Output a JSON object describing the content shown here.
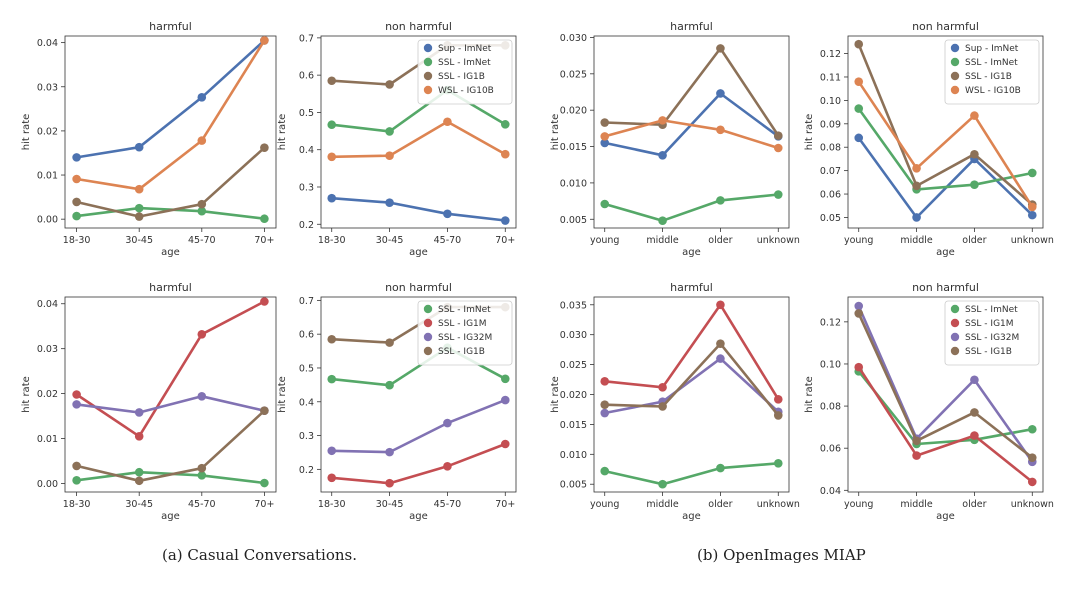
{
  "colors": {
    "Sup - ImNet": "#4c72b0",
    "SSL - ImNet": "#55a868",
    "SSL - IG1B": "#8c7158",
    "WSL - IG10B": "#dd8452",
    "SSL - IG1M": "#c44e52",
    "SSL - IG32M": "#8172b3"
  },
  "captions": {
    "a": "(a) Casual Conversations.",
    "b": "(b) OpenImages MIAP"
  },
  "chart_data": [
    {
      "type": "line",
      "title": "harmful",
      "xlabel": "age",
      "ylabel": "hit rate",
      "categories": [
        "18-30",
        "30-45",
        "45-70",
        "70+"
      ],
      "ylim": [
        -0.002,
        0.0415
      ],
      "yticks": [
        0.0,
        0.01,
        0.02,
        0.03,
        0.04
      ],
      "ytick_labels": [
        "0.00",
        "0.01",
        "0.02",
        "0.03",
        "0.04"
      ],
      "legend": null,
      "series": [
        {
          "name": "Sup - ImNet",
          "values": [
            0.014,
            0.0163,
            0.0276,
            0.0405
          ]
        },
        {
          "name": "SSL - ImNet",
          "values": [
            0.0007,
            0.0025,
            0.0018,
            0.0001
          ]
        },
        {
          "name": "SSL - IG1B",
          "values": [
            0.0039,
            0.0006,
            0.0034,
            0.0162
          ]
        },
        {
          "name": "WSL - IG10B",
          "values": [
            0.0091,
            0.0068,
            0.0178,
            0.0405
          ]
        }
      ]
    },
    {
      "type": "line",
      "title": "non harmful",
      "xlabel": "age",
      "ylabel": "hit rate",
      "categories": [
        "18-30",
        "30-45",
        "45-70",
        "70+"
      ],
      "ylim": [
        0.19,
        0.705
      ],
      "yticks": [
        0.2,
        0.3,
        0.4,
        0.5,
        0.6,
        0.7
      ],
      "ytick_labels": [
        "0.2",
        "0.3",
        "0.4",
        "0.5",
        "0.6",
        "0.7"
      ],
      "legend": "top-right",
      "series": [
        {
          "name": "Sup - ImNet",
          "values": [
            0.27,
            0.258,
            0.228,
            0.21
          ]
        },
        {
          "name": "SSL - ImNet",
          "values": [
            0.467,
            0.449,
            0.56,
            0.468
          ]
        },
        {
          "name": "SSL - IG1B",
          "values": [
            0.585,
            0.575,
            0.68,
            0.68
          ]
        },
        {
          "name": "WSL - IG10B",
          "values": [
            0.381,
            0.384,
            0.475,
            0.388
          ]
        }
      ]
    },
    {
      "type": "line",
      "title": "harmful",
      "xlabel": "age",
      "ylabel": "hit rate",
      "categories": [
        "young",
        "middle",
        "older",
        "unknown"
      ],
      "ylim": [
        0.0038,
        0.0302
      ],
      "yticks": [
        0.005,
        0.01,
        0.015,
        0.02,
        0.025,
        0.03
      ],
      "ytick_labels": [
        "0.005",
        "0.010",
        "0.015",
        "0.020",
        "0.025",
        "0.030"
      ],
      "legend": null,
      "series": [
        {
          "name": "Sup - ImNet",
          "values": [
            0.0155,
            0.0138,
            0.0223,
            0.0164
          ]
        },
        {
          "name": "SSL - ImNet",
          "values": [
            0.0071,
            0.0048,
            0.0076,
            0.0084
          ]
        },
        {
          "name": "SSL - IG1B",
          "values": [
            0.0183,
            0.018,
            0.0285,
            0.0165
          ]
        },
        {
          "name": "WSL - IG10B",
          "values": [
            0.0164,
            0.0186,
            0.0173,
            0.0148
          ]
        }
      ]
    },
    {
      "type": "line",
      "title": "non harmful",
      "xlabel": "age",
      "ylabel": "hit rate",
      "categories": [
        "young",
        "middle",
        "older",
        "unknown"
      ],
      "ylim": [
        0.0455,
        0.1275
      ],
      "yticks": [
        0.05,
        0.06,
        0.07,
        0.08,
        0.09,
        0.1,
        0.11,
        0.12
      ],
      "ytick_labels": [
        "0.05",
        "0.06",
        "0.07",
        "0.08",
        "0.09",
        "0.10",
        "0.11",
        "0.12"
      ],
      "legend": "top-right",
      "series": [
        {
          "name": "Sup - ImNet",
          "values": [
            0.084,
            0.05,
            0.075,
            0.051
          ]
        },
        {
          "name": "SSL - ImNet",
          "values": [
            0.0965,
            0.062,
            0.064,
            0.069
          ]
        },
        {
          "name": "SSL - IG1B",
          "values": [
            0.124,
            0.0635,
            0.077,
            0.0555
          ]
        },
        {
          "name": "WSL - IG10B",
          "values": [
            0.108,
            0.071,
            0.0935,
            0.0545
          ]
        }
      ]
    },
    {
      "type": "line",
      "title": "harmful",
      "xlabel": "age",
      "ylabel": "hit rate",
      "categories": [
        "18-30",
        "30-45",
        "45-70",
        "70+"
      ],
      "ylim": [
        -0.0019,
        0.0415
      ],
      "yticks": [
        0.0,
        0.01,
        0.02,
        0.03,
        0.04
      ],
      "ytick_labels": [
        "0.00",
        "0.01",
        "0.02",
        "0.03",
        "0.04"
      ],
      "legend": null,
      "series": [
        {
          "name": "SSL - ImNet",
          "values": [
            0.0007,
            0.0025,
            0.0018,
            0.0001
          ]
        },
        {
          "name": "SSL - IG1M",
          "values": [
            0.0198,
            0.0105,
            0.0332,
            0.0405
          ]
        },
        {
          "name": "SSL - IG32M",
          "values": [
            0.0176,
            0.0158,
            0.0194,
            0.0162
          ]
        },
        {
          "name": "SSL - IG1B",
          "values": [
            0.0039,
            0.0006,
            0.0034,
            0.0162
          ]
        }
      ]
    },
    {
      "type": "line",
      "title": "non harmful",
      "xlabel": "age",
      "ylabel": "hit rate",
      "categories": [
        "18-30",
        "30-45",
        "45-70",
        "70+"
      ],
      "ylim": [
        0.133,
        0.71
      ],
      "yticks": [
        0.2,
        0.3,
        0.4,
        0.5,
        0.6,
        0.7
      ],
      "ytick_labels": [
        "0.2",
        "0.3",
        "0.4",
        "0.5",
        "0.6",
        "0.7"
      ],
      "legend": "top-right",
      "series": [
        {
          "name": "SSL - ImNet",
          "values": [
            0.467,
            0.449,
            0.56,
            0.468
          ]
        },
        {
          "name": "SSL - IG1M",
          "values": [
            0.175,
            0.159,
            0.209,
            0.275
          ]
        },
        {
          "name": "SSL - IG32M",
          "values": [
            0.255,
            0.251,
            0.337,
            0.405
          ]
        },
        {
          "name": "SSL - IG1B",
          "values": [
            0.585,
            0.575,
            0.68,
            0.68
          ]
        }
      ]
    },
    {
      "type": "line",
      "title": "harmful",
      "xlabel": "age",
      "ylabel": "hit rate",
      "categories": [
        "young",
        "middle",
        "older",
        "unknown"
      ],
      "ylim": [
        0.0037,
        0.0363
      ],
      "yticks": [
        0.005,
        0.01,
        0.015,
        0.02,
        0.025,
        0.03,
        0.035
      ],
      "ytick_labels": [
        "0.005",
        "0.010",
        "0.015",
        "0.020",
        "0.025",
        "0.030",
        "0.035"
      ],
      "legend": null,
      "series": [
        {
          "name": "SSL - ImNet",
          "values": [
            0.0072,
            0.005,
            0.0077,
            0.0085
          ]
        },
        {
          "name": "SSL - IG1M",
          "values": [
            0.0222,
            0.0212,
            0.035,
            0.0192
          ]
        },
        {
          "name": "SSL - IG32M",
          "values": [
            0.0169,
            0.0188,
            0.026,
            0.0171
          ]
        },
        {
          "name": "SSL - IG1B",
          "values": [
            0.0183,
            0.018,
            0.0285,
            0.0165
          ]
        }
      ]
    },
    {
      "type": "line",
      "title": "non harmful",
      "xlabel": "age",
      "ylabel": "hit rate",
      "categories": [
        "young",
        "middle",
        "older",
        "unknown"
      ],
      "ylim": [
        0.0392,
        0.1318
      ],
      "yticks": [
        0.04,
        0.06,
        0.08,
        0.1,
        0.12
      ],
      "ytick_labels": [
        "0.04",
        "0.06",
        "0.08",
        "0.10",
        "0.12"
      ],
      "legend": "top-right",
      "series": [
        {
          "name": "SSL - ImNet",
          "values": [
            0.0965,
            0.062,
            0.064,
            0.069
          ]
        },
        {
          "name": "SSL - IG1M",
          "values": [
            0.0985,
            0.0565,
            0.066,
            0.044
          ]
        },
        {
          "name": "SSL - IG32M",
          "values": [
            0.1275,
            0.0645,
            0.0925,
            0.0535
          ]
        },
        {
          "name": "SSL - IG1B",
          "values": [
            0.124,
            0.0635,
            0.077,
            0.0555
          ]
        }
      ]
    }
  ]
}
